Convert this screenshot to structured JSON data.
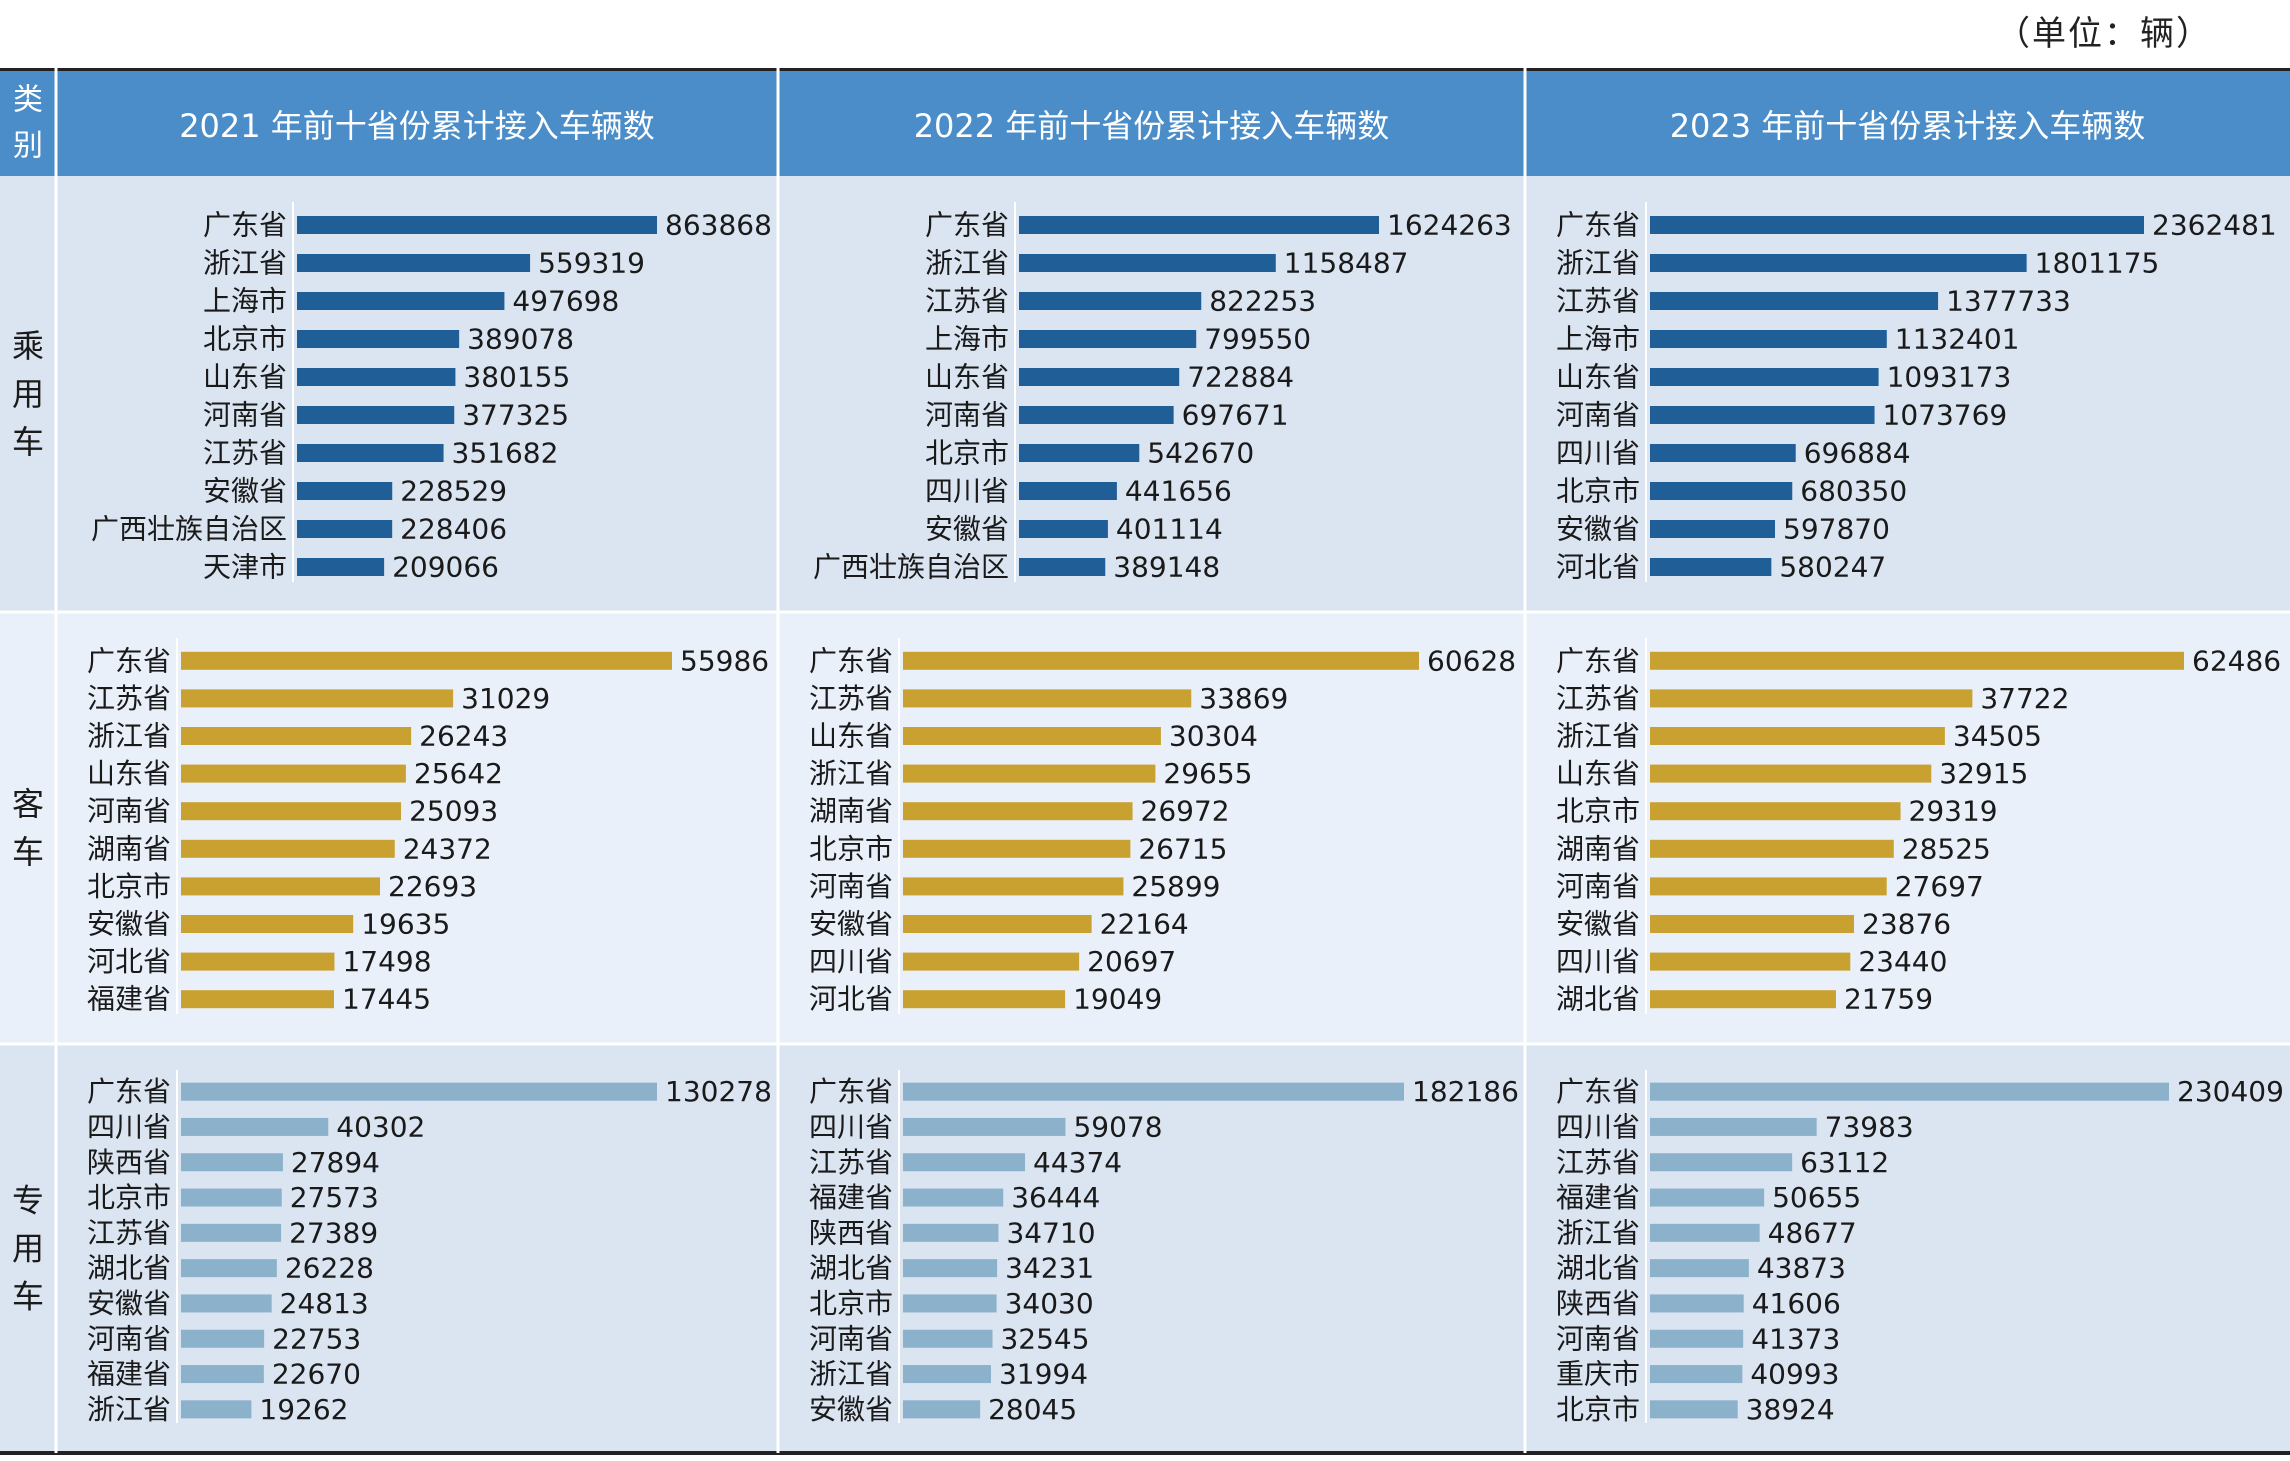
{
  "unit_label": "（单位：辆）",
  "category_header": "类别",
  "column_headers": [
    "2021 年前十省份累计接入车辆数",
    "2022 年前十省份累计接入车辆数",
    "2023 年前十省份累计接入车辆数"
  ],
  "row_labels": [
    "乘用车",
    "客车",
    "专用车"
  ],
  "colors": {
    "header_bg": "#4a8dc9",
    "row_bg": [
      "#dbe4f1",
      "#eaf0f9",
      "#dbe4f1"
    ],
    "bar_colors": [
      "#1f5e96",
      "#c9a130",
      "#8bb1cb"
    ],
    "border": "#ffffff"
  },
  "chart_data": [
    {
      "type": "bar",
      "orientation": "horizontal",
      "vehicle": "乘用车",
      "year": "2021",
      "categories": [
        "广东省",
        "浙江省",
        "上海市",
        "北京市",
        "山东省",
        "河南省",
        "江苏省",
        "安徽省",
        "广西壮族自治区",
        "天津市"
      ],
      "values": [
        863868,
        559319,
        497698,
        389078,
        380155,
        377325,
        351682,
        228529,
        228406,
        209066
      ]
    },
    {
      "type": "bar",
      "orientation": "horizontal",
      "vehicle": "乘用车",
      "year": "2022",
      "categories": [
        "广东省",
        "浙江省",
        "江苏省",
        "上海市",
        "山东省",
        "河南省",
        "北京市",
        "四川省",
        "安徽省",
        "广西壮族自治区"
      ],
      "values": [
        1624263,
        1158487,
        822253,
        799550,
        722884,
        697671,
        542670,
        441656,
        401114,
        389148
      ]
    },
    {
      "type": "bar",
      "orientation": "horizontal",
      "vehicle": "乘用车",
      "year": "2023",
      "categories": [
        "广东省",
        "浙江省",
        "江苏省",
        "上海市",
        "山东省",
        "河南省",
        "四川省",
        "北京市",
        "安徽省",
        "河北省"
      ],
      "values": [
        2362481,
        1801175,
        1377733,
        1132401,
        1093173,
        1073769,
        696884,
        680350,
        597870,
        580247
      ]
    },
    {
      "type": "bar",
      "orientation": "horizontal",
      "vehicle": "客车",
      "year": "2021",
      "categories": [
        "广东省",
        "江苏省",
        "浙江省",
        "山东省",
        "河南省",
        "湖南省",
        "北京市",
        "安徽省",
        "河北省",
        "福建省"
      ],
      "values": [
        55986,
        31029,
        26243,
        25642,
        25093,
        24372,
        22693,
        19635,
        17498,
        17445
      ]
    },
    {
      "type": "bar",
      "orientation": "horizontal",
      "vehicle": "客车",
      "year": "2022",
      "categories": [
        "广东省",
        "江苏省",
        "山东省",
        "浙江省",
        "湖南省",
        "北京市",
        "河南省",
        "安徽省",
        "四川省",
        "河北省"
      ],
      "values": [
        60628,
        33869,
        30304,
        29655,
        26972,
        26715,
        25899,
        22164,
        20697,
        19049
      ]
    },
    {
      "type": "bar",
      "orientation": "horizontal",
      "vehicle": "客车",
      "year": "2023",
      "categories": [
        "广东省",
        "江苏省",
        "浙江省",
        "山东省",
        "北京市",
        "湖南省",
        "河南省",
        "安徽省",
        "四川省",
        "湖北省"
      ],
      "values": [
        62486,
        37722,
        34505,
        32915,
        29319,
        28525,
        27697,
        23876,
        23440,
        21759
      ]
    },
    {
      "type": "bar",
      "orientation": "horizontal",
      "vehicle": "专用车",
      "year": "2021",
      "categories": [
        "广东省",
        "四川省",
        "陕西省",
        "北京市",
        "江苏省",
        "湖北省",
        "安徽省",
        "河南省",
        "福建省",
        "浙江省"
      ],
      "values": [
        130278,
        40302,
        27894,
        27573,
        27389,
        26228,
        24813,
        22753,
        22670,
        19262
      ]
    },
    {
      "type": "bar",
      "orientation": "horizontal",
      "vehicle": "专用车",
      "year": "2022",
      "categories": [
        "广东省",
        "四川省",
        "江苏省",
        "福建省",
        "陕西省",
        "湖北省",
        "北京市",
        "河南省",
        "浙江省",
        "安徽省"
      ],
      "values": [
        182186,
        59078,
        44374,
        36444,
        34710,
        34231,
        34030,
        32545,
        31994,
        28045
      ]
    },
    {
      "type": "bar",
      "orientation": "horizontal",
      "vehicle": "专用车",
      "year": "2023",
      "categories": [
        "广东省",
        "四川省",
        "江苏省",
        "福建省",
        "浙江省",
        "湖北省",
        "陕西省",
        "河南省",
        "重庆市",
        "北京市"
      ],
      "values": [
        230409,
        73983,
        63112,
        50655,
        48677,
        43873,
        41606,
        41373,
        40993,
        38924
      ]
    }
  ]
}
